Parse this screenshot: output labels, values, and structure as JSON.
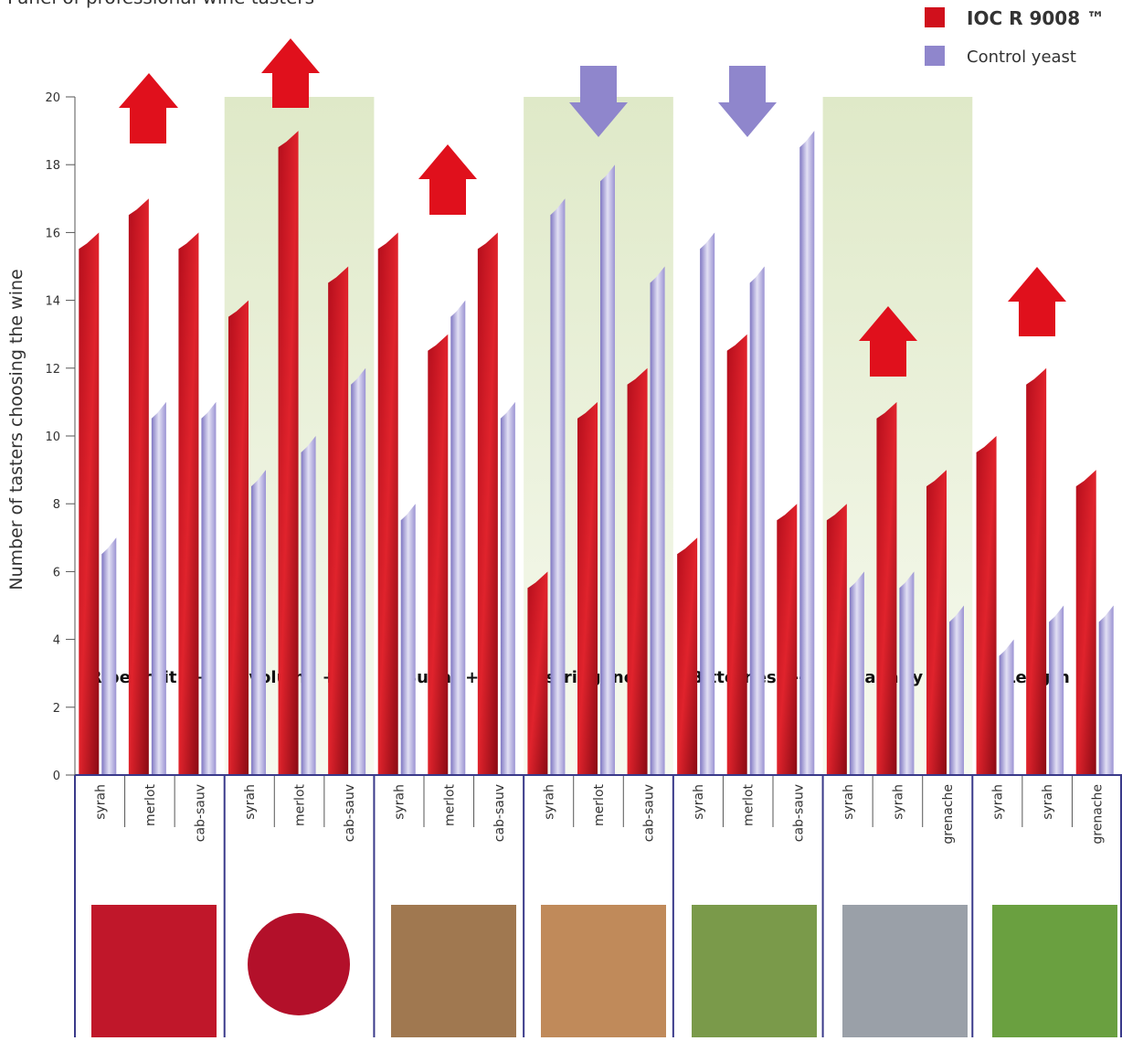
{
  "chart_data": {
    "type": "bar",
    "title": "Panel of professional wine tasters",
    "y_label": "Number of tasters choosing the wine",
    "categories": [
      "syrah",
      "merlot",
      "cab-sauv",
      "syrah",
      "merlot",
      "cab-sauv",
      "syrah",
      "merlot",
      "cab-sauv",
      "syrah",
      "merlot",
      "cab-sauv",
      "syrah",
      "merlot",
      "cab-sauv",
      "syrah",
      "syrah",
      "grenache",
      "syrah",
      "syrah",
      "grenache"
    ],
    "group_labels": [
      "Ripe fruit ++",
      "volume ++",
      "Sugar ++",
      "Astringency --",
      "Bitterness --",
      "Salinity +",
      "Length +"
    ],
    "series": [
      {
        "name": "IOC R 9008 ™",
        "color": "#d0101c",
        "values": [
          16,
          17,
          16,
          14,
          19,
          15,
          16,
          13,
          16,
          6,
          11,
          12,
          7,
          13,
          8,
          8,
          11,
          9,
          10,
          12,
          9
        ]
      },
      {
        "name": "Control yeast",
        "color": "#8f86cc",
        "values": [
          7,
          11,
          11,
          9,
          10,
          12,
          8,
          14,
          11,
          17,
          18,
          15,
          16,
          15,
          19,
          6,
          6,
          5,
          4,
          5,
          5
        ]
      }
    ],
    "ylim": [
      0,
      20
    ],
    "yticks": [
      0,
      2,
      4,
      6,
      8,
      10,
      12,
      14,
      16,
      18,
      20
    ]
  }
}
